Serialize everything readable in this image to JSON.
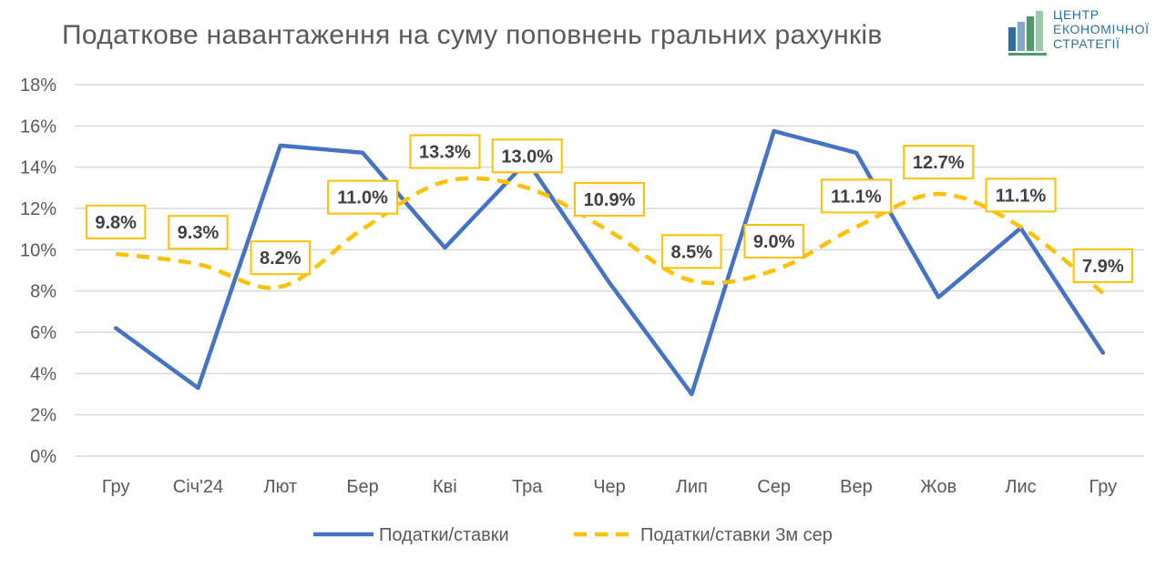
{
  "chart_data": {
    "type": "line",
    "title": "Податкове навантаження на суму поповнень гральних рахунків",
    "categories": [
      "Гру",
      "Січ'24",
      "Лют",
      "Бер",
      "Кві",
      "Тра",
      "Чер",
      "Лип",
      "Сер",
      "Вер",
      "Жов",
      "Лис",
      "Гру"
    ],
    "y_ticks": [
      "0%",
      "2%",
      "4%",
      "6%",
      "8%",
      "10%",
      "12%",
      "14%",
      "16%",
      "18%"
    ],
    "ylim": [
      0,
      18
    ],
    "grid": true,
    "legend_position": "bottom",
    "series": [
      {
        "name": "Податки/ставки",
        "color": "#4472C4",
        "dash": "solid",
        "values": [
          6.2,
          3.3,
          15.05,
          14.7,
          10.1,
          14.3,
          8.4,
          3.0,
          15.75,
          14.7,
          7.7,
          11.05,
          5.0
        ]
      },
      {
        "name": "Податки/ставки 3м сер",
        "color": "#FFC000",
        "dash": "dashed",
        "values": [
          9.8,
          9.3,
          8.2,
          11.0,
          13.3,
          13.0,
          10.9,
          8.5,
          9.0,
          11.1,
          12.7,
          11.1,
          7.9
        ],
        "labels": [
          "9.8%",
          "9.3%",
          "8.2%",
          "11.0%",
          "13.3%",
          "13.0%",
          "10.9%",
          "8.5%",
          "9.0%",
          "11.1%",
          "12.7%",
          "11.1%",
          "7.9%"
        ]
      }
    ]
  },
  "logo": {
    "lines": [
      "ЦЕНТР",
      "ЕКОНОМІЧНОЇ",
      "СТРАТЕГІЇ"
    ],
    "colors": [
      "#2E6EA6",
      "#7FA7C9",
      "#4E9A6B",
      "#9CC9A9"
    ]
  }
}
